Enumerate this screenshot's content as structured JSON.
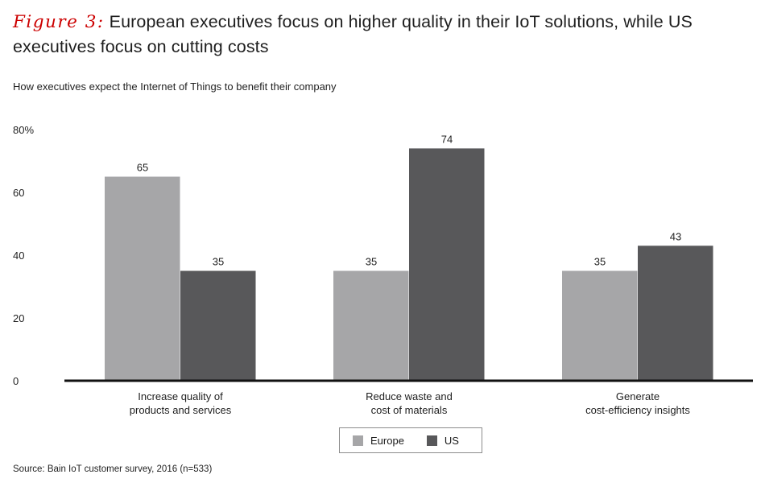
{
  "figure": {
    "label": "Figure 3:",
    "title": "European executives focus on higher quality in their IoT solutions, while US executives focus on cutting costs",
    "source": "Source: Bain IoT customer survey, 2016 (n=533)"
  },
  "colors": {
    "europe": "#a6a6a8",
    "us": "#58585a",
    "axis": "#111111",
    "text": "#1f1f1f",
    "accent": "#cc0000"
  },
  "chart_data": {
    "type": "bar",
    "title": "How executives expect the Internet of Things to benefit their company",
    "categories": [
      [
        "Increase quality of",
        "products and services"
      ],
      [
        "Reduce waste and",
        "cost of materials"
      ],
      [
        "Generate",
        "cost-efficiency insights"
      ]
    ],
    "series": [
      {
        "name": "Europe",
        "values": [
          65,
          35,
          35
        ]
      },
      {
        "name": "US",
        "values": [
          35,
          74,
          43
        ]
      }
    ],
    "ylim": [
      0,
      80
    ],
    "yticks": [
      0,
      20,
      40,
      60,
      80
    ],
    "ytick_labels": [
      "0",
      "20",
      "40",
      "60",
      "80%"
    ],
    "xlabel": "",
    "ylabel": "",
    "grid": false,
    "legend_position": "bottom-center"
  }
}
